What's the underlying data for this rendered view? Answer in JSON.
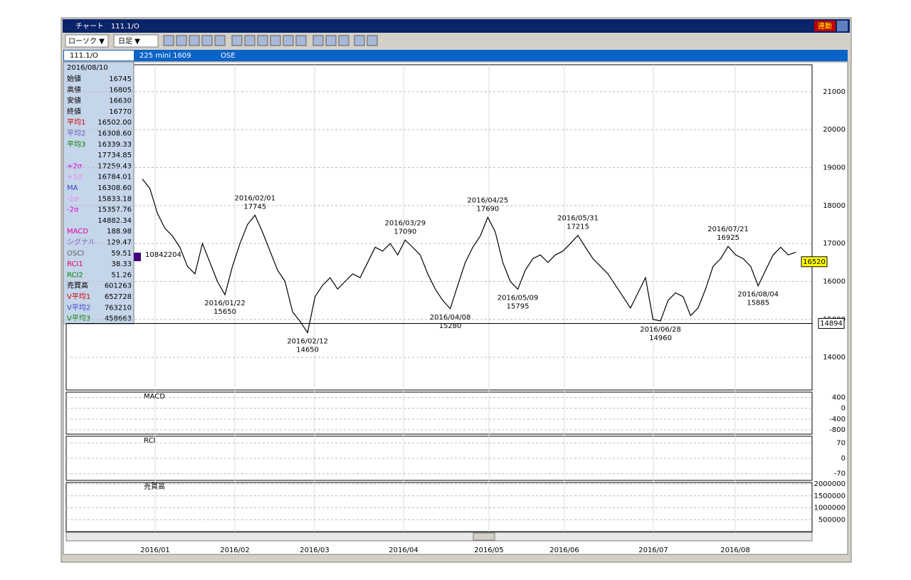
{
  "window": {
    "title": "チャート　111.1/O",
    "link_button": "連動"
  },
  "toolbar": {
    "candle_select": "ローソク ▼",
    "period_select": "日足 ▼"
  },
  "symbol_bar": {
    "code": "111.1/O",
    "name": "225 mini 1609",
    "market": "OSE"
  },
  "info_panel": {
    "date": "2016/08/10",
    "rows": [
      {
        "label": "始値",
        "value": "16745",
        "color": "#000000"
      },
      {
        "label": "高値",
        "value": "16805",
        "color": "#000000"
      },
      {
        "label": "安値",
        "value": "16630",
        "color": "#000000"
      },
      {
        "label": "終値",
        "value": "16770",
        "color": "#000000"
      },
      {
        "label": "平均1",
        "value": "16502.00",
        "color": "#d00000"
      },
      {
        "label": "平均2",
        "value": "16308.60",
        "color": "#6060c0"
      },
      {
        "label": "平均3",
        "value": "16339.33",
        "color": "#008000"
      },
      {
        "label": null,
        "value": "17734.85",
        "color": "#000000"
      },
      {
        "label": "+2σ",
        "value": "17259.43",
        "color": "#e000e0"
      },
      {
        "label": "+1σ",
        "value": "16784.01",
        "color": "#f080f0"
      },
      {
        "label": "MA",
        "value": "16308.60",
        "color": "#4040c0"
      },
      {
        "label": "-1σ",
        "value": "15833.18",
        "color": "#f080f0"
      },
      {
        "label": "-2σ",
        "value": "15357.76",
        "color": "#e000e0"
      },
      {
        "label": null,
        "value": "14882.34",
        "color": "#000000"
      },
      {
        "label": "MACD",
        "value": "188.98",
        "color": "#e000a0"
      },
      {
        "label": "シグナル",
        "value": "129.47",
        "color": "#8060c0"
      },
      {
        "label": "OSCI",
        "value": "59.51",
        "color": "#606060"
      },
      {
        "label": "RCI1",
        "value": "38.33",
        "color": "#e00060"
      },
      {
        "label": "RCI2",
        "value": "51.26",
        "color": "#008000"
      },
      {
        "label": "売買高",
        "value": "601263",
        "color": "#000000"
      },
      {
        "label": "V平均1",
        "value": "652728",
        "color": "#d00000"
      },
      {
        "label": "V平均2",
        "value": "763210",
        "color": "#4040c0"
      },
      {
        "label": "V平均3",
        "value": "458663",
        "color": "#008000"
      }
    ]
  },
  "chart_data": {
    "type": "line",
    "color": "#000000",
    "values": [
      18700,
      18450,
      17800,
      17400,
      17200,
      16900,
      16400,
      16200,
      17000,
      16500,
      16000,
      15650,
      16400,
      17000,
      17500,
      17745,
      17300,
      16800,
      16300,
      16000,
      15200,
      14950,
      14650,
      15600,
      15900,
      16100,
      15800,
      16000,
      16200,
      16100,
      16500,
      16900,
      16800,
      17000,
      16700,
      17090,
      16900,
      16700,
      16200,
      15800,
      15500,
      15280,
      15900,
      16500,
      16900,
      17200,
      17690,
      17300,
      16500,
      16000,
      15795,
      16300,
      16600,
      16700,
      16500,
      16700,
      16800,
      17000,
      17215,
      16900,
      16600,
      16400,
      16200,
      15900,
      15600,
      15300,
      15700,
      16100,
      15000,
      14960,
      15500,
      15700,
      15600,
      15100,
      15300,
      15800,
      16400,
      16600,
      16925,
      16700,
      16600,
      16400,
      15885,
      16300,
      16700,
      16900,
      16700,
      16770
    ],
    "annotations": [
      {
        "date": "2016/02/01",
        "value": 17745
      },
      {
        "date": "2016/01/22",
        "value": 15650
      },
      {
        "date": "2016/02/12",
        "value": 14650
      },
      {
        "date": "2016/03/29",
        "value": 17090
      },
      {
        "date": "2016/04/08",
        "value": 15280
      },
      {
        "date": "2016/04/25",
        "value": 17690
      },
      {
        "date": "2016/05/09",
        "value": 15795
      },
      {
        "date": "2016/05/31",
        "value": 17215
      },
      {
        "date": "2016/06/28",
        "value": 14960
      },
      {
        "date": "2016/07/21",
        "value": 16925
      },
      {
        "date": "2016/08/04",
        "value": 15885
      }
    ],
    "ylim": [
      13140,
      21710
    ],
    "yticks": [
      14000,
      15000,
      16000,
      17000,
      18000,
      19000,
      20000,
      21000
    ],
    "current_price": 16520,
    "band_price": 14894,
    "volume_marker": "10842204",
    "months": [
      "2016/01",
      "2016/02",
      "2016/03",
      "2016/04",
      "2016/05",
      "2016/06",
      "2016/07",
      "2016/08"
    ],
    "macd_panel": {
      "label": "MACD",
      "ylim": [
        -960,
        600
      ],
      "yticks": [
        400,
        0,
        -400,
        -800
      ]
    },
    "rci_panel": {
      "label": "RCI",
      "ylim": [
        -100,
        100
      ],
      "yticks": [
        70,
        0,
        -70
      ]
    },
    "volume_panel": {
      "label": "売買高",
      "ylim": [
        0,
        2060000
      ],
      "yticks": [
        500000,
        1000000,
        1500000,
        2000000
      ]
    }
  }
}
